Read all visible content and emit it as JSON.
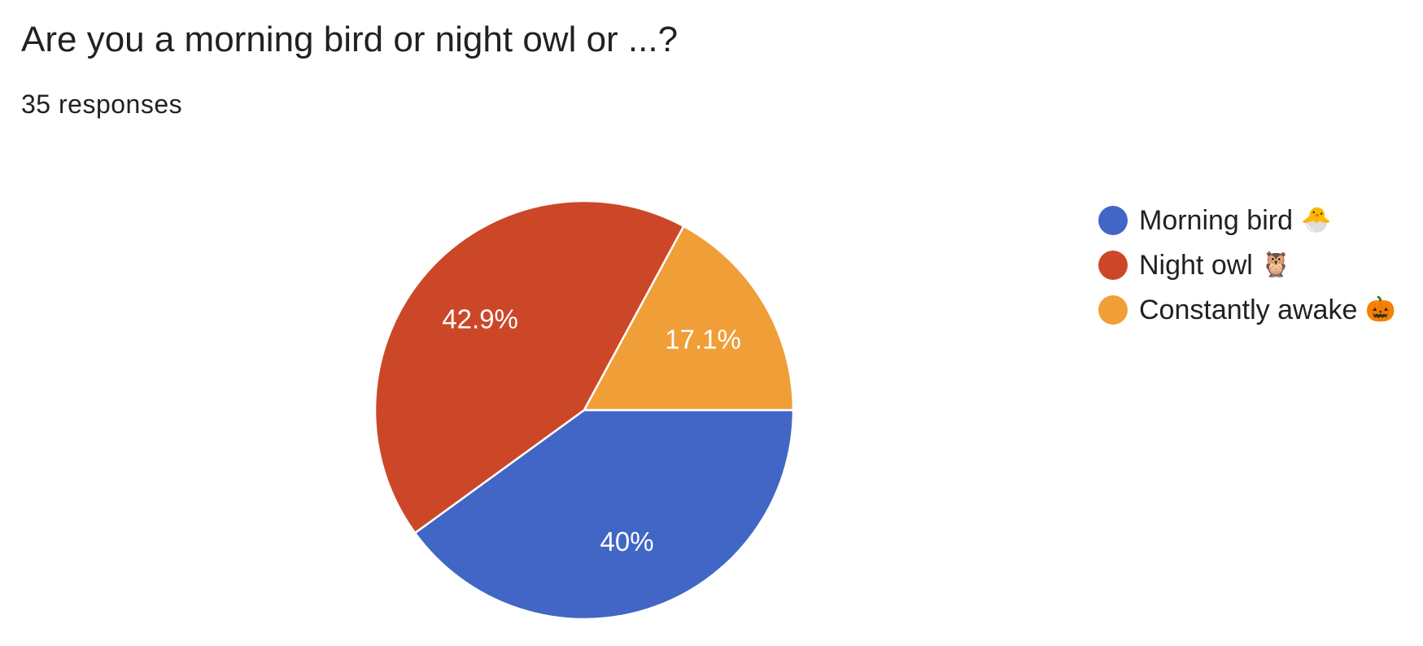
{
  "question": {
    "title": "Are you a morning bird or night owl or ...?",
    "responses": "35 responses"
  },
  "legend": [
    {
      "label": "Morning bird",
      "icon": "🐣",
      "icon_name": "hatching-chick-icon",
      "color": "#4166c6"
    },
    {
      "label": "Night owl",
      "icon": "🦉",
      "icon_name": "owl-icon",
      "color": "#cc4728"
    },
    {
      "label": "Constantly awake",
      "icon": "🎃",
      "icon_name": "jack-o-lantern-icon",
      "color": "#f09e38"
    }
  ],
  "chart_data": {
    "type": "pie",
    "title": "Are you a morning bird or night owl or ...?",
    "legend_position": "right",
    "slices": [
      {
        "label": "Morning bird 🐣",
        "value": 40.0,
        "display": "40%",
        "color": "#4166c6"
      },
      {
        "label": "Night owl 🦉",
        "value": 42.9,
        "display": "42.9%",
        "color": "#cc4728"
      },
      {
        "label": "Constantly awake 🎃",
        "value": 17.1,
        "display": "17.1%",
        "color": "#f09e38"
      }
    ]
  }
}
